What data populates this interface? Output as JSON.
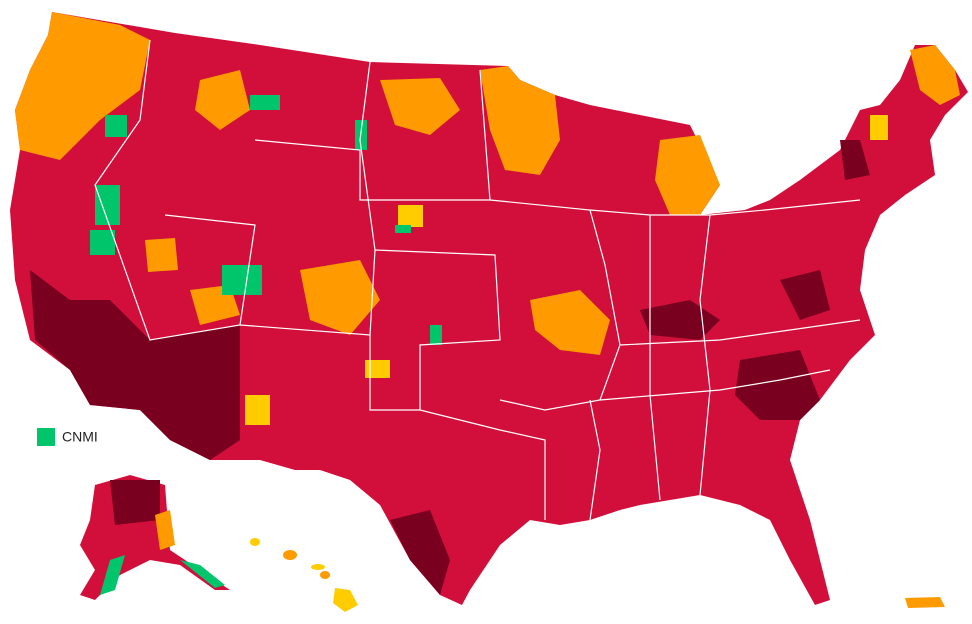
{
  "legend": {
    "label": "CNMI"
  }
}
